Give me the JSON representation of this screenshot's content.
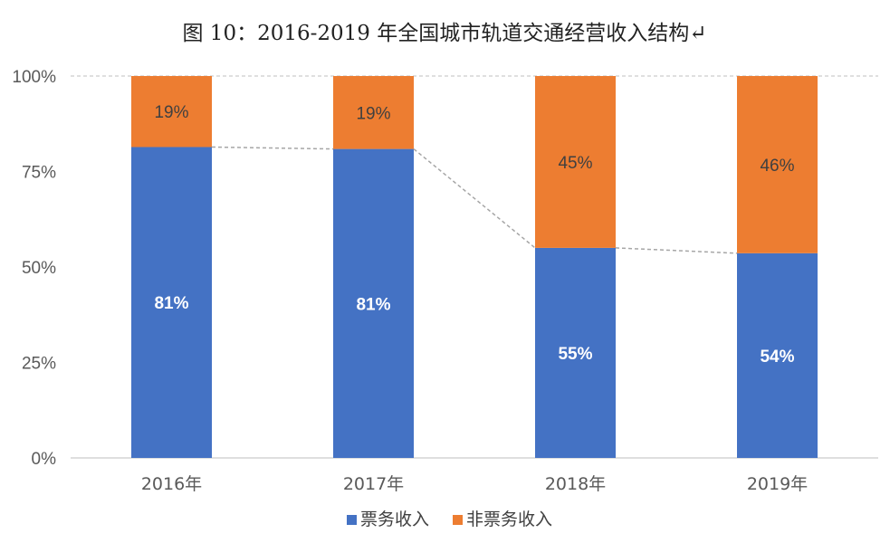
{
  "chart_data": {
    "type": "bar",
    "stacked": true,
    "title": "图 10：2016-2019 年全国城市轨道交通经营收入结构↵",
    "categories": [
      "2016年",
      "2017年",
      "2018年",
      "2019年"
    ],
    "y_axis": {
      "ticks": [
        "0%",
        "25%",
        "50%",
        "75%",
        "100%"
      ],
      "ylim": [
        0,
        100
      ],
      "unit": "%"
    },
    "series": [
      {
        "name": "票务收入",
        "color": "#4472C4",
        "values": [
          81,
          81,
          55,
          54
        ],
        "labels": [
          "81%",
          "81%",
          "55%",
          "54%"
        ],
        "plot_values": [
          81.4,
          80.9,
          55.0,
          53.6
        ]
      },
      {
        "name": "非票务收入",
        "color": "#ED7D31",
        "values": [
          19,
          19,
          45,
          46
        ],
        "labels": [
          "19%",
          "19%",
          "45%",
          "46%"
        ],
        "plot_values": [
          18.6,
          19.1,
          45.0,
          46.4
        ]
      }
    ],
    "legend": {
      "position": "bottom"
    },
    "series_lines": true
  }
}
